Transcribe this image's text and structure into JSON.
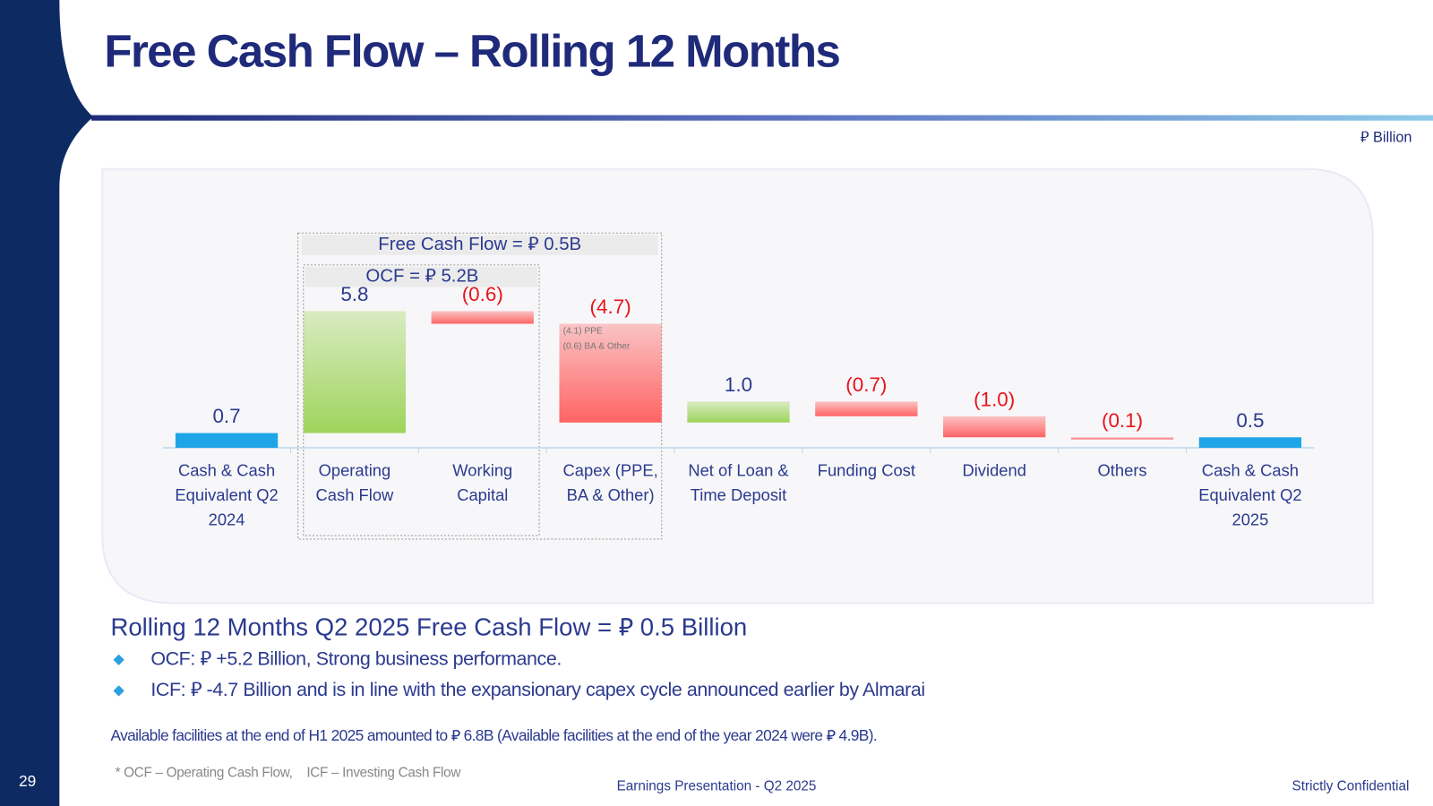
{
  "page_number": "29",
  "title": "Free Cash Flow – Rolling 12 Months",
  "unit": "⃁ Billion",
  "chart_data": {
    "type": "waterfall",
    "categories": [
      "Cash & Cash Equivalent Q2 2024",
      "Operating Cash Flow",
      "Working Capital",
      "Capex (PPE, BA & Other)",
      "Net of Loan & Time Deposit",
      "Funding Cost",
      "Dividend",
      "Others",
      "Cash & Cash Equivalent Q2 2025"
    ],
    "values": [
      0.7,
      5.8,
      -0.6,
      -4.7,
      1.0,
      -0.7,
      -1.0,
      -0.1,
      0.5
    ],
    "value_labels": [
      "0.7",
      "5.8",
      "(0.6)",
      "(4.7)",
      "1.0",
      "(0.7)",
      "(1.0)",
      "(0.1)",
      "0.5"
    ],
    "colors": {
      "total": "#1ea5e8",
      "increase": "#9fd45c",
      "decrease": "#ff6464"
    },
    "annotations": {
      "fcf": "Free Cash Flow = ⃁ 0.5B",
      "ocf": "OCF = ⃁ 5.2B",
      "capex_notes": [
        "(4.1) PPE",
        "(0.6) BA & Other"
      ]
    }
  },
  "summary": {
    "heading": "Rolling 12 Months Q2 2025 Free Cash Flow = ⃁ 0.5 Billion",
    "bullets": [
      "OCF: ⃁ +5.2 Billion, Strong business performance.",
      "ICF: ⃁ -4.7 Billion and is in line with the expansionary capex cycle announced earlier by Almarai"
    ],
    "note": "Available facilities at the end of H1 2025 amounted to ⃁ 6.8B (Available facilities at the end of the year 2024 were ⃁ 4.9B).",
    "footnote": "* OCF – Operating Cash Flow,    ICF – Investing Cash Flow"
  },
  "footer": {
    "center": "Earnings Presentation - Q2 2025",
    "right": "Strictly Confidential"
  }
}
